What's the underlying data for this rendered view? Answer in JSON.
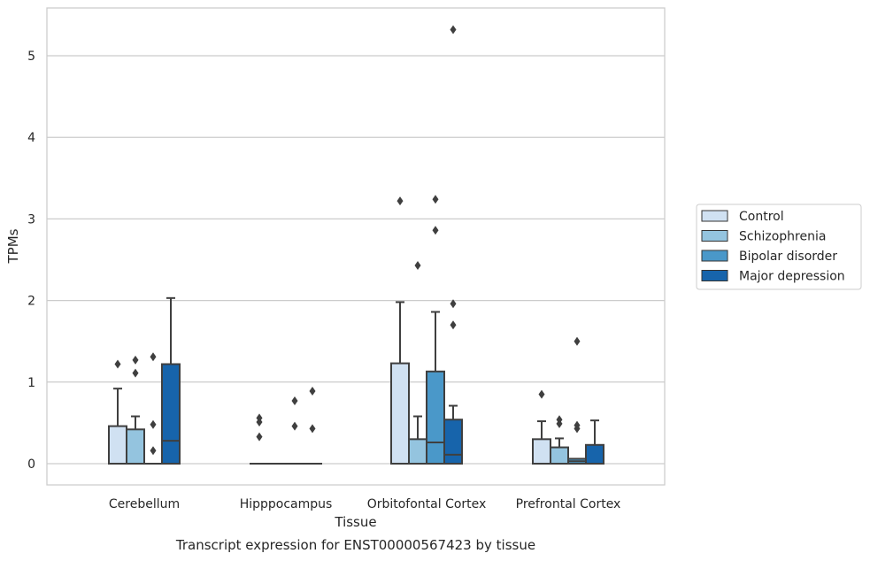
{
  "chart_data": {
    "type": "box",
    "xlabel": "Tissue",
    "ylabel": "TPMs",
    "caption": "Transcript expression for ENST00000567423 by tissue",
    "ylim": [
      -0.26,
      5.6
    ],
    "yticks": [
      0,
      1,
      2,
      3,
      4,
      5
    ],
    "grid": "horizontal",
    "legend_position": "right",
    "categories": [
      "Cerebellum",
      "Hipppocampus",
      "Orbitofontal Cortex",
      "Prefrontal Cortex"
    ],
    "series": [
      {
        "name": "Control",
        "color": "#d0e1f2",
        "boxes": [
          {
            "q1": 0,
            "median": 0,
            "q3": 0.46,
            "whisker_low": 0,
            "whisker_high": 0.92,
            "outliers": [
              1.22
            ]
          },
          {
            "q1": 0,
            "median": 0,
            "q3": 0,
            "whisker_low": 0,
            "whisker_high": 0,
            "outliers": [
              0.33,
              0.51,
              0.56
            ]
          },
          {
            "q1": 0,
            "median": 0,
            "q3": 1.23,
            "whisker_low": 0,
            "whisker_high": 1.98,
            "outliers": [
              3.22
            ]
          },
          {
            "q1": 0,
            "median": 0,
            "q3": 0.3,
            "whisker_low": 0,
            "whisker_high": 0.52,
            "outliers": [
              0.85
            ]
          }
        ]
      },
      {
        "name": "Schizophrenia",
        "color": "#94c4df",
        "boxes": [
          {
            "q1": 0,
            "median": 0,
            "q3": 0.42,
            "whisker_low": 0,
            "whisker_high": 0.58,
            "outliers": [
              1.11,
              1.27
            ]
          },
          {
            "q1": 0,
            "median": 0,
            "q3": 0,
            "whisker_low": 0,
            "whisker_high": 0,
            "outliers": []
          },
          {
            "q1": 0,
            "median": 0,
            "q3": 0.3,
            "whisker_low": 0,
            "whisker_high": 0.58,
            "outliers": [
              2.43
            ]
          },
          {
            "q1": 0,
            "median": 0,
            "q3": 0.2,
            "whisker_low": 0,
            "whisker_high": 0.31,
            "outliers": [
              0.49,
              0.54
            ]
          }
        ]
      },
      {
        "name": "Bipolar disorder",
        "color": "#4a98c9",
        "boxes": [
          {
            "q1": 0,
            "median": 0,
            "q3": 0,
            "whisker_low": 0,
            "whisker_high": 0,
            "outliers": [
              0.16,
              0.48,
              1.31
            ]
          },
          {
            "q1": 0,
            "median": 0,
            "q3": 0,
            "whisker_low": 0,
            "whisker_high": 0,
            "outliers": [
              0.46,
              0.77
            ]
          },
          {
            "q1": 0,
            "median": 0.26,
            "q3": 1.13,
            "whisker_low": 0,
            "whisker_high": 1.86,
            "outliers": [
              2.86,
              3.24
            ]
          },
          {
            "q1": 0,
            "median": 0.03,
            "q3": 0.06,
            "whisker_low": 0,
            "whisker_high": 0.06,
            "outliers": [
              0.43,
              0.47,
              1.5
            ]
          }
        ]
      },
      {
        "name": "Major depression",
        "color": "#1764ab",
        "boxes": [
          {
            "q1": 0,
            "median": 0.28,
            "q3": 1.22,
            "whisker_low": 0,
            "whisker_high": 2.03,
            "outliers": []
          },
          {
            "q1": 0,
            "median": 0,
            "q3": 0,
            "whisker_low": 0,
            "whisker_high": 0,
            "outliers": [
              0.43,
              0.89
            ]
          },
          {
            "q1": 0,
            "median": 0.11,
            "q3": 0.54,
            "whisker_low": 0,
            "whisker_high": 0.71,
            "outliers": [
              1.7,
              1.96,
              5.32
            ]
          },
          {
            "q1": 0,
            "median": 0,
            "q3": 0.23,
            "whisker_low": 0,
            "whisker_high": 0.53,
            "outliers": []
          }
        ]
      }
    ]
  }
}
